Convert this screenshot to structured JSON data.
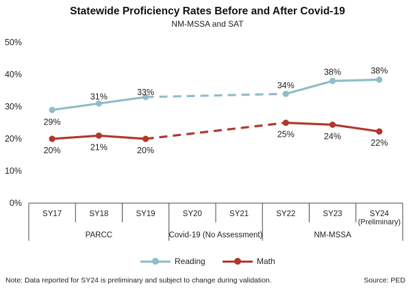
{
  "chart_data": {
    "type": "line",
    "title": "Statewide Proficiency Rates Before and After Covid-19",
    "subtitle": "NM-MSSA and SAT",
    "categories": [
      "SY17",
      "SY18",
      "SY19",
      "SY20",
      "SY21",
      "SY22",
      "SY23",
      "SY24"
    ],
    "category_sublabels": [
      "",
      "",
      "",
      "",
      "",
      "",
      "",
      "(Preliminary)"
    ],
    "category_groups": [
      {
        "label": "PARCC",
        "categories": [
          "SY17",
          "SY18",
          "SY19"
        ]
      },
      {
        "label": "Covid-19 (No Assessment)",
        "categories": [
          "SY20",
          "SY21"
        ]
      },
      {
        "label": "NM-MSSA",
        "categories": [
          "SY22",
          "SY23",
          "SY24"
        ]
      }
    ],
    "y_ticks": [
      "0%",
      "10%",
      "20%",
      "30%",
      "40%",
      "50%"
    ],
    "ylim": [
      0,
      50
    ],
    "grid": false,
    "series": [
      {
        "name": "Reading",
        "color": "#8fbdc9",
        "values": [
          29,
          31,
          33,
          null,
          null,
          34,
          38,
          38.4
        ],
        "labels": [
          "29%",
          "31%",
          "33%",
          "",
          "",
          "34%",
          "38%",
          "38%"
        ],
        "gap_style": "dashed"
      },
      {
        "name": "Math",
        "color": "#b3362b",
        "values": [
          20,
          21,
          20,
          null,
          null,
          25,
          24.4,
          22.3
        ],
        "labels": [
          "20%",
          "21%",
          "20%",
          "",
          "",
          "25%",
          "24%",
          "22%"
        ],
        "gap_style": "dashed"
      }
    ],
    "legend_position": "bottom"
  },
  "footer": {
    "note": "Note: Data reported for SY24 is preliminary and subject to change during validation.",
    "source": "Source: PED"
  }
}
